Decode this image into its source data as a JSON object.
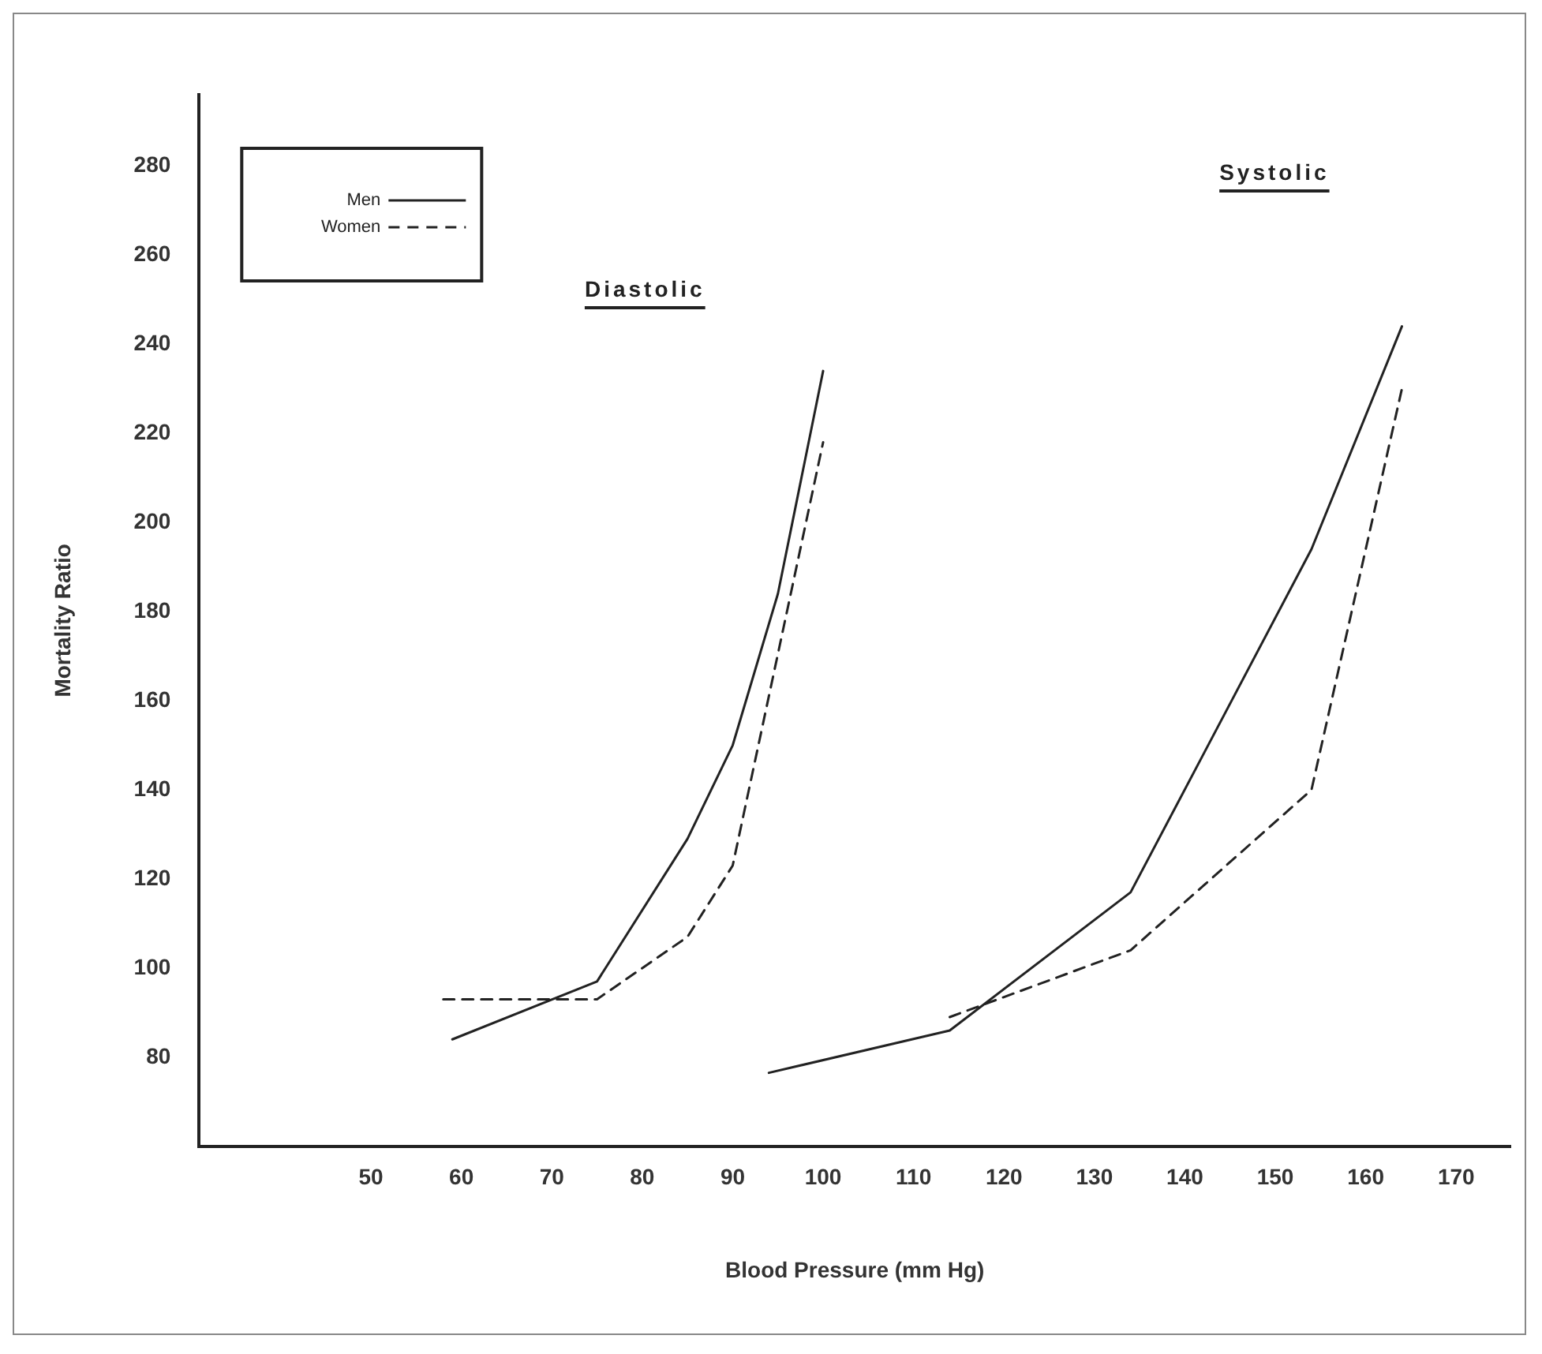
{
  "chart_data": {
    "type": "line",
    "xlabel": "Blood Pressure (mm Hg)",
    "ylabel": "Mortality Ratio",
    "xlim": [
      31,
      176
    ],
    "xticks": [
      50,
      60,
      70,
      80,
      90,
      100,
      110,
      120,
      130,
      140,
      150,
      160,
      170
    ],
    "ylim": [
      60,
      296
    ],
    "yticks": [
      80,
      100,
      120,
      140,
      160,
      180,
      200,
      220,
      240,
      260,
      280
    ],
    "grid": false,
    "legend": "top left",
    "marker": "none",
    "annotations": [
      "Diastolic",
      "Systolic"
    ],
    "series": [
      {
        "name": "Men",
        "color": "#222222",
        "line_style": "solid",
        "x": [
          59,
          75,
          85,
          90,
          95,
          100,
          97,
          94,
          114,
          134,
          154,
          164
        ],
        "values": [
          84,
          97,
          129,
          150,
          184,
          234,
          null,
          76.5,
          86,
          117,
          194,
          244
        ]
      },
      {
        "name": "Women",
        "color": "#222222",
        "line_style": "dashed",
        "x": [
          58,
          75,
          85,
          90,
          100,
          107,
          114,
          134,
          154,
          164
        ],
        "values": [
          93,
          93,
          107,
          123,
          218,
          null,
          89,
          104,
          140,
          230
        ]
      }
    ]
  }
}
